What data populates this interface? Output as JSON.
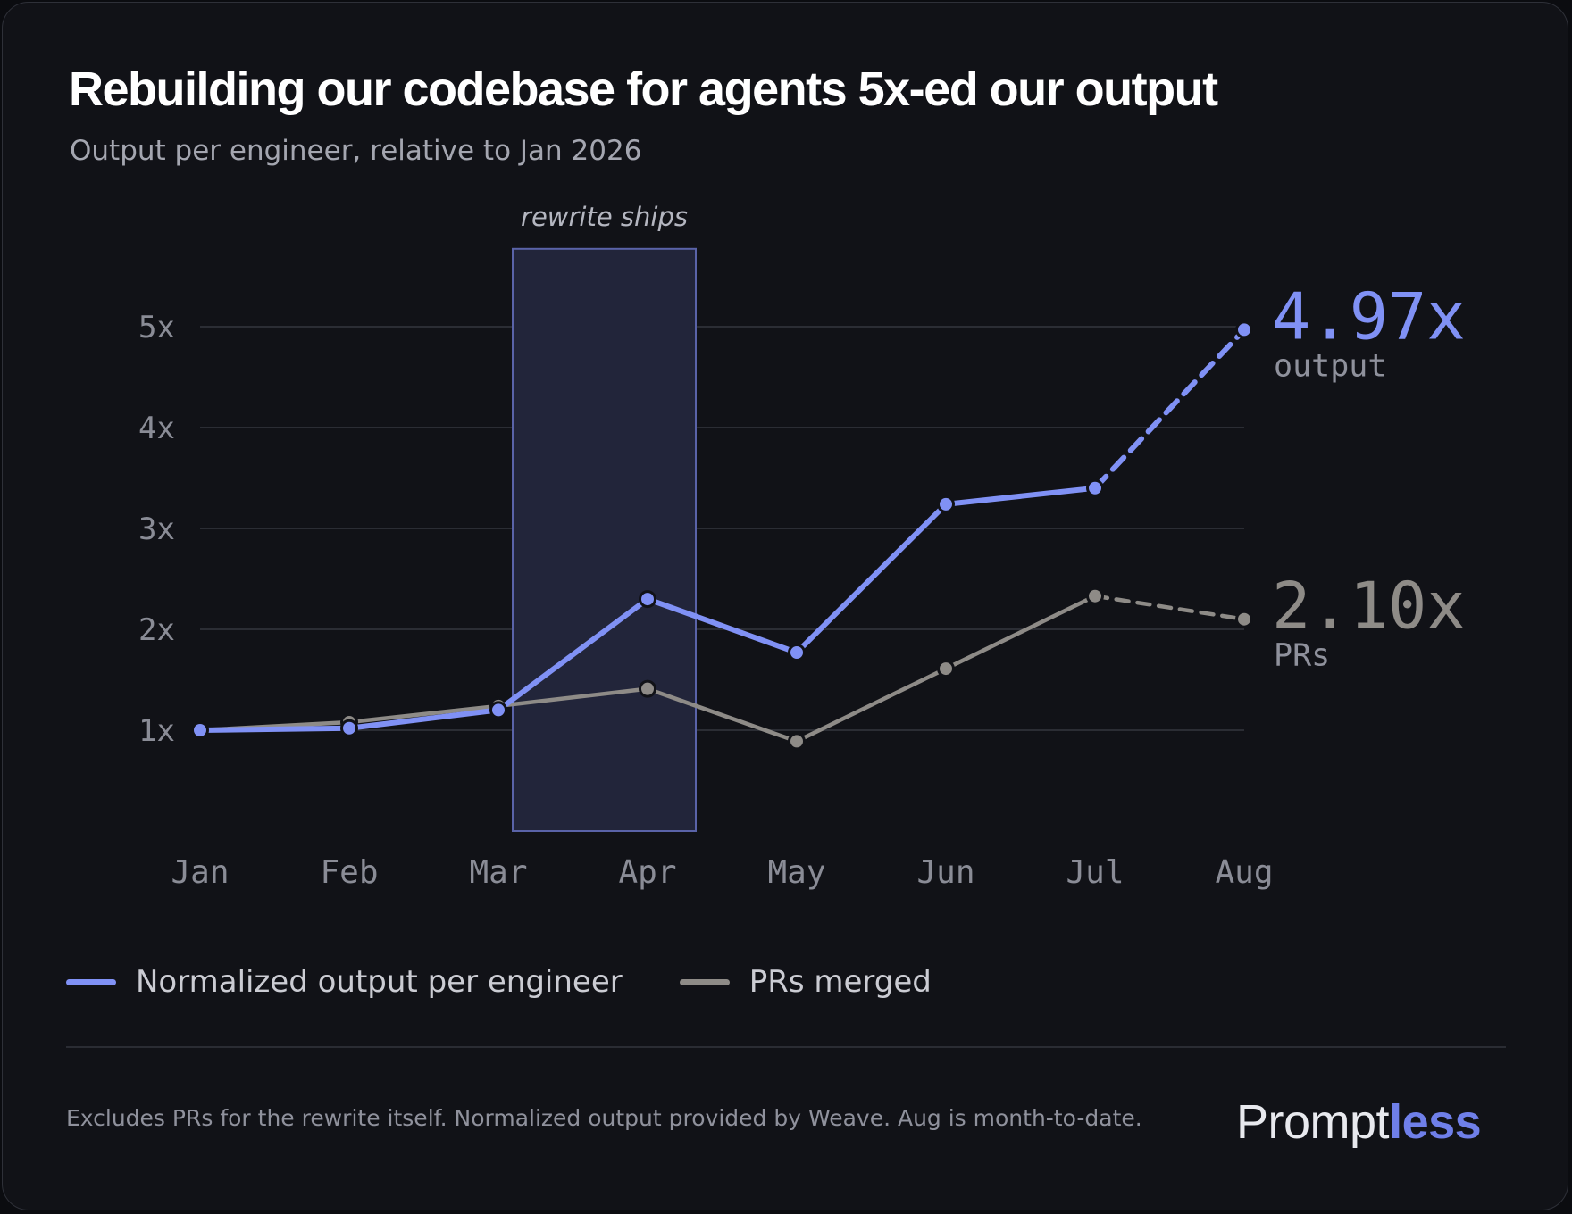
{
  "title": "Rebuilding our codebase for agents 5x-ed our output",
  "subtitle": "Output per engineer, relative to Jan 2026",
  "chart_data": {
    "type": "line",
    "categories": [
      "Jan",
      "Feb",
      "Mar",
      "Apr",
      "May",
      "Jun",
      "Jul",
      "Aug"
    ],
    "yticks": [
      1,
      2,
      3,
      4,
      5
    ],
    "ytick_labels": [
      "1x",
      "2x",
      "3x",
      "4x",
      "5x"
    ],
    "ylim": [
      0,
      5.4
    ],
    "grid": true,
    "series": [
      {
        "name": "Normalized output per engineer",
        "color": "#8091f5",
        "values": [
          1.0,
          1.02,
          1.2,
          2.3,
          1.77,
          3.24,
          3.4,
          4.97
        ],
        "projected_from_index": 6,
        "end_value_label": "4.97x",
        "end_label": "output"
      },
      {
        "name": "PRs merged",
        "color": "#8e8b87",
        "values": [
          1.0,
          1.08,
          1.24,
          1.41,
          0.89,
          1.61,
          2.33,
          2.1
        ],
        "projected_from_index": 6,
        "end_value_label": "2.10x",
        "end_label": "PRs"
      }
    ],
    "highlight_band": {
      "from": "Mar",
      "to": "Apr",
      "label": "rewrite ships"
    }
  },
  "footnote": "Excludes PRs for the rewrite itself. Normalized output provided by Weave. Aug is month-to-date.",
  "logo": {
    "part1": "Prompt",
    "part2": "less"
  },
  "colors": {
    "background": "#111217",
    "output_series": "#8091f5",
    "prs_series": "#8e8b87",
    "band_fill": "#22253a",
    "band_border": "#5a63a8"
  }
}
